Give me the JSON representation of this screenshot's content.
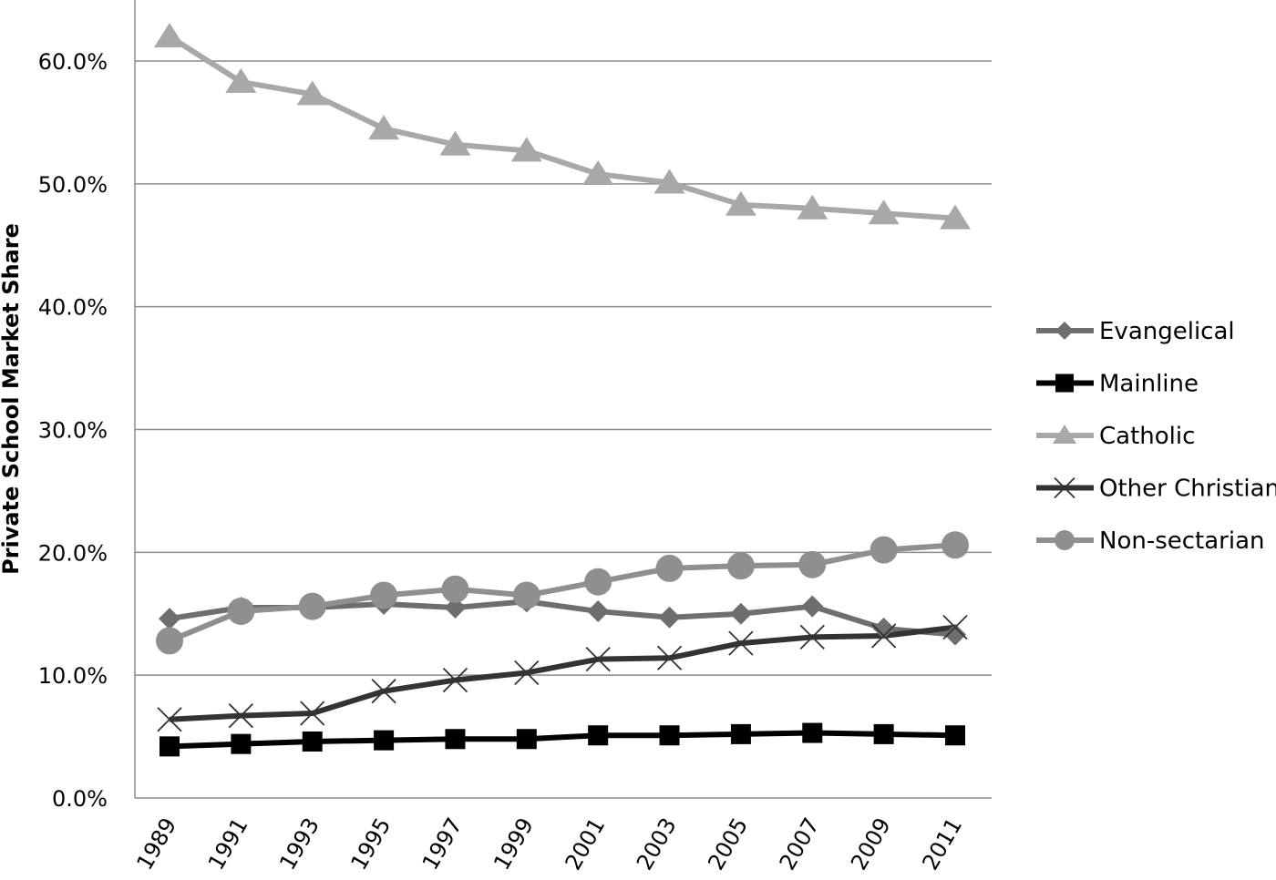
{
  "chart_data": {
    "type": "line",
    "title": "",
    "xlabel": "",
    "ylabel": "Private School Market Share",
    "ylim": [
      0,
      0.65
    ],
    "yticks": [
      0.0,
      0.1,
      0.2,
      0.3,
      0.4,
      0.5,
      0.6
    ],
    "ytick_labels": [
      "0.0%",
      "10.0%",
      "20.0%",
      "30.0%",
      "40.0%",
      "50.0%",
      "60.0%"
    ],
    "grid": "horizontal",
    "legend_position": "right",
    "categories": [
      "1989",
      "1991",
      "1993",
      "1995",
      "1997",
      "1999",
      "2001",
      "2003",
      "2005",
      "2007",
      "2009",
      "2011"
    ],
    "series": [
      {
        "name": "Evangelical",
        "marker": "diamond",
        "color": "#6e6e6e",
        "values": [
          0.146,
          0.155,
          0.155,
          0.158,
          0.155,
          0.16,
          0.152,
          0.147,
          0.15,
          0.156,
          0.138,
          0.133
        ]
      },
      {
        "name": "Mainline",
        "marker": "square",
        "color": "#000000",
        "values": [
          0.042,
          0.044,
          0.046,
          0.047,
          0.048,
          0.048,
          0.051,
          0.051,
          0.052,
          0.053,
          0.052,
          0.051
        ]
      },
      {
        "name": "Catholic",
        "marker": "triangle",
        "color": "#a8a8a8",
        "values": [
          0.62,
          0.583,
          0.573,
          0.545,
          0.532,
          0.527,
          0.508,
          0.501,
          0.483,
          0.48,
          0.476,
          0.472
        ]
      },
      {
        "name": "Other Christian",
        "marker": "x",
        "color": "#333333",
        "values": [
          0.064,
          0.067,
          0.069,
          0.087,
          0.096,
          0.102,
          0.113,
          0.114,
          0.126,
          0.131,
          0.132,
          0.139
        ]
      },
      {
        "name": "Non-sectarian",
        "marker": "circle",
        "color": "#8f8f8f",
        "values": [
          0.128,
          0.152,
          0.156,
          0.165,
          0.17,
          0.165,
          0.176,
          0.187,
          0.189,
          0.19,
          0.202,
          0.206
        ]
      }
    ]
  }
}
